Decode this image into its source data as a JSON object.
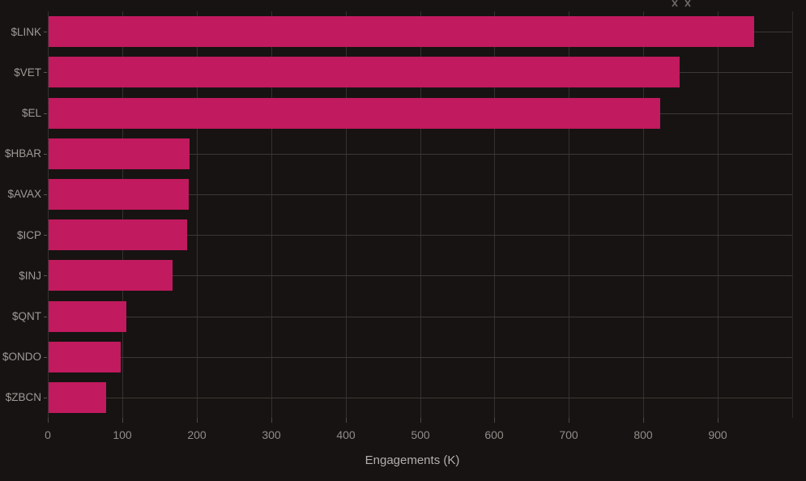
{
  "chart_data": {
    "type": "bar",
    "orientation": "horizontal",
    "title": "",
    "xlabel": "Engagements (K)",
    "ylabel": "",
    "categories": [
      "$LINK",
      "$VET",
      "$EL",
      "$HBAR",
      "$AVAX",
      "$ICP",
      "$INJ",
      "$QNT",
      "$ONDO",
      "$ZBCN"
    ],
    "values": [
      948,
      848,
      822,
      189,
      188,
      186,
      167,
      105,
      97,
      77
    ],
    "xlim": [
      0,
      1000
    ],
    "xticks": [
      0,
      100,
      200,
      300,
      400,
      500,
      600,
      700,
      800,
      900
    ],
    "grid": true,
    "legend": "none",
    "colors": {
      "bar": "#c11a5e",
      "background": "#171312",
      "vertical_gridline": "#343130",
      "horizontal_gridline": "#3b3836",
      "category_label": "#9e9a97",
      "tick_label": "#908c89",
      "axis_title": "#b3afac",
      "modebar_icon": "#6e6a67"
    }
  },
  "icons": {
    "modebar_partial": "collapse-arrows-icon"
  }
}
